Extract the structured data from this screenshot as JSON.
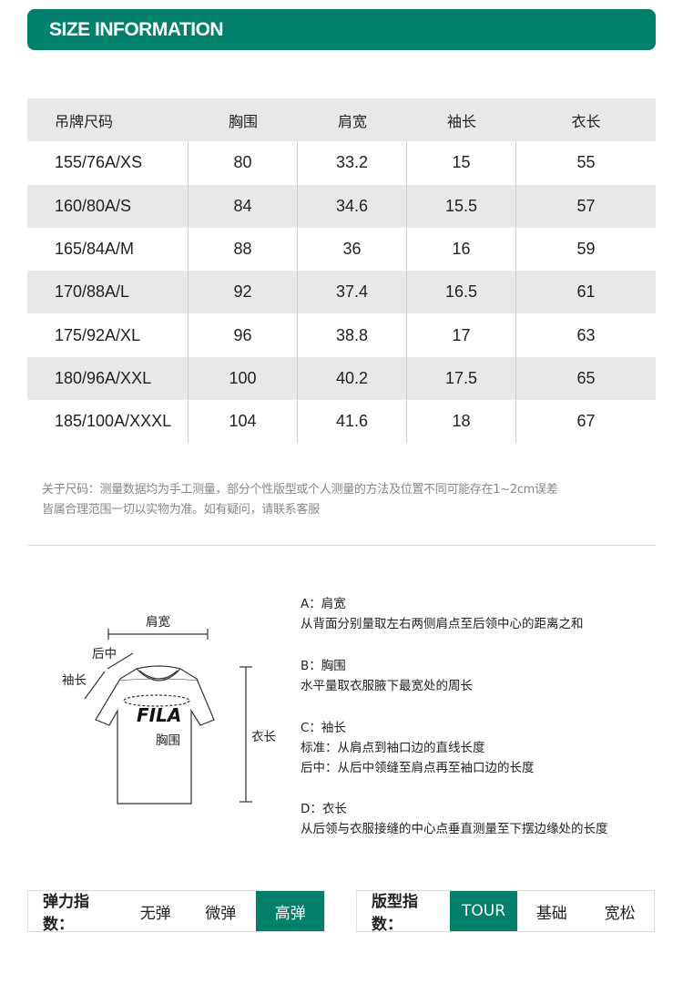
{
  "header": {
    "title": "SIZE INFORMATION"
  },
  "colors": {
    "accent": "#00806a"
  },
  "table": {
    "headers": [
      "吊牌尺码",
      "胸围",
      "肩宽",
      "袖长",
      "衣长"
    ],
    "rows": [
      [
        "155/76A/XS",
        "80",
        "33.2",
        "15",
        "55"
      ],
      [
        "160/80A/S",
        "84",
        "34.6",
        "15.5",
        "57"
      ],
      [
        "165/84A/M",
        "88",
        "36",
        "16",
        "59"
      ],
      [
        "170/88A/L",
        "92",
        "37.4",
        "16.5",
        "61"
      ],
      [
        "175/92A/XL",
        "96",
        "38.8",
        "17",
        "63"
      ],
      [
        "180/96A/XXL",
        "100",
        "40.2",
        "17.5",
        "65"
      ],
      [
        "185/100A/XXXL",
        "104",
        "41.6",
        "18",
        "67"
      ]
    ]
  },
  "note": {
    "line1": "关于尺码：测量数据均为手工测量，部分个性版型或个人测量的方法及位置不同可能存在1~2cm误差",
    "line2": "皆属合理范围一切以实物为准。如有疑问，请联系客服"
  },
  "diagram": {
    "shoulder": "肩宽",
    "back_center": "后中",
    "sleeve": "袖长",
    "chest": "胸围",
    "length": "衣长",
    "logo": "FILA"
  },
  "descriptions": [
    {
      "title": "A：肩宽",
      "lines": [
        "从背面分别量取左右两侧肩点至后领中心的距离之和"
      ]
    },
    {
      "title": "B：胸围",
      "lines": [
        "水平量取衣服腋下最宽处的周长"
      ]
    },
    {
      "title": "C：袖长",
      "lines": [
        "标准：从肩点到袖口边的直线长度",
        "后中：从后中领缝至肩点再至袖口边的长度"
      ]
    },
    {
      "title": "D：衣长",
      "lines": [
        "从后领与衣服接缝的中心点垂直测量至下摆边缘处的长度"
      ]
    }
  ],
  "elasticity": {
    "label": "弹力指数：",
    "options": [
      "无弹",
      "微弹",
      "高弹"
    ],
    "selected": "高弹"
  },
  "fit": {
    "label": "版型指数：",
    "options": [
      "TOUR",
      "基础",
      "宽松"
    ],
    "selected": "TOUR"
  }
}
